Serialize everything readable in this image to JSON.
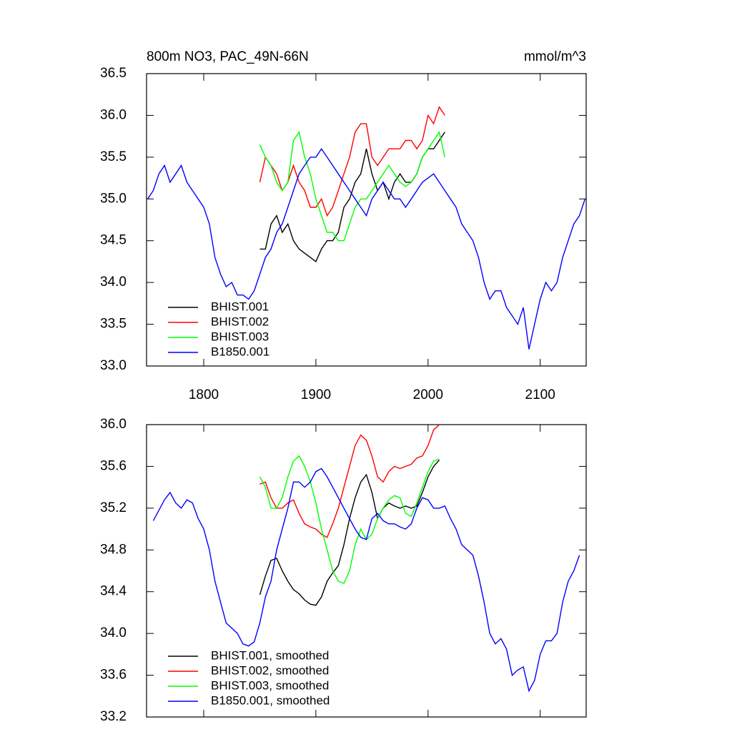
{
  "chart_data": [
    {
      "type": "line",
      "title": "800m NO3, PAC_49N-66N",
      "units": "mmol/m^3",
      "xlim": [
        1749,
        2141
      ],
      "xticks": [
        1800,
        1900,
        2000,
        2100
      ],
      "xticklabels": true,
      "ylim": [
        33.0,
        36.5
      ],
      "yticks": [
        {
          "value": 33.0,
          "label": "33.0"
        },
        33.5,
        {
          "value": 34.0,
          "label": "34.0"
        },
        34.5,
        {
          "value": 35.0,
          "label": "35.0"
        },
        35.5,
        {
          "value": 36.0,
          "label": "36.0"
        },
        36.5
      ],
      "legend": "lower left",
      "series": [
        {
          "name": "BHIST.001",
          "color": "#000000",
          "x": [
            1850,
            1855,
            1860,
            1865,
            1870,
            1875,
            1880,
            1885,
            1890,
            1895,
            1900,
            1905,
            1910,
            1915,
            1920,
            1925,
            1930,
            1935,
            1940,
            1945,
            1950,
            1955,
            1960,
            1965,
            1970,
            1975,
            1980,
            1985,
            1990,
            1995,
            2000,
            2005,
            2010,
            2015
          ],
          "values": [
            34.4,
            34.4,
            34.7,
            34.8,
            34.6,
            34.7,
            34.5,
            34.4,
            34.35,
            34.3,
            34.25,
            34.4,
            34.5,
            34.5,
            34.6,
            34.9,
            35.0,
            35.2,
            35.3,
            35.6,
            35.3,
            35.1,
            35.2,
            35.0,
            35.2,
            35.3,
            35.2,
            35.2,
            35.3,
            35.5,
            35.6,
            35.6,
            35.7,
            35.8
          ]
        },
        {
          "name": "BHIST.002",
          "color": "#ff0000",
          "x": [
            1850,
            1855,
            1860,
            1865,
            1870,
            1875,
            1880,
            1885,
            1890,
            1895,
            1900,
            1905,
            1910,
            1915,
            1920,
            1925,
            1930,
            1935,
            1940,
            1945,
            1950,
            1955,
            1960,
            1965,
            1970,
            1975,
            1980,
            1985,
            1990,
            1995,
            2000,
            2005,
            2010,
            2015
          ],
          "values": [
            35.2,
            35.5,
            35.4,
            35.3,
            35.1,
            35.2,
            35.4,
            35.2,
            35.1,
            34.9,
            34.9,
            35.0,
            34.8,
            34.9,
            35.1,
            35.3,
            35.5,
            35.8,
            35.9,
            35.9,
            35.5,
            35.4,
            35.5,
            35.6,
            35.6,
            35.6,
            35.7,
            35.7,
            35.6,
            35.7,
            36.0,
            35.9,
            36.1,
            36.0
          ]
        },
        {
          "name": "BHIST.003",
          "color": "#00ff00",
          "x": [
            1850,
            1855,
            1860,
            1865,
            1870,
            1875,
            1880,
            1885,
            1890,
            1895,
            1900,
            1905,
            1910,
            1915,
            1920,
            1925,
            1930,
            1935,
            1940,
            1945,
            1950,
            1955,
            1960,
            1965,
            1970,
            1975,
            1980,
            1985,
            1990,
            1995,
            2000,
            2005,
            2010,
            2015
          ],
          "values": [
            35.65,
            35.5,
            35.4,
            35.2,
            35.1,
            35.2,
            35.7,
            35.8,
            35.5,
            35.3,
            35.0,
            34.8,
            34.6,
            34.6,
            34.5,
            34.5,
            34.7,
            34.9,
            35.0,
            35.0,
            35.1,
            35.2,
            35.3,
            35.4,
            35.3,
            35.2,
            35.15,
            35.2,
            35.3,
            35.5,
            35.6,
            35.7,
            35.8,
            35.5
          ]
        },
        {
          "name": "B1850.001",
          "color": "#0000ff",
          "x": [
            1750,
            1755,
            1760,
            1765,
            1770,
            1775,
            1780,
            1785,
            1790,
            1795,
            1800,
            1805,
            1810,
            1815,
            1820,
            1825,
            1830,
            1835,
            1840,
            1845,
            1850,
            1855,
            1860,
            1865,
            1870,
            1875,
            1880,
            1885,
            1890,
            1895,
            1900,
            1905,
            1910,
            1915,
            1920,
            1925,
            1930,
            1935,
            1940,
            1945,
            1950,
            1955,
            1960,
            1965,
            1970,
            1975,
            1980,
            1985,
            1990,
            1995,
            2000,
            2005,
            2010,
            2015,
            2020,
            2025,
            2030,
            2035,
            2040,
            2045,
            2050,
            2055,
            2060,
            2065,
            2070,
            2075,
            2080,
            2085,
            2090,
            2095,
            2100,
            2105,
            2110,
            2115,
            2120,
            2125,
            2130,
            2135,
            2140
          ],
          "values": [
            35.0,
            35.1,
            35.3,
            35.4,
            35.2,
            35.3,
            35.4,
            35.2,
            35.1,
            35.0,
            34.9,
            34.7,
            34.3,
            34.1,
            33.95,
            34.0,
            33.85,
            33.85,
            33.8,
            33.9,
            34.1,
            34.3,
            34.4,
            34.6,
            34.7,
            34.9,
            35.1,
            35.3,
            35.4,
            35.5,
            35.5,
            35.6,
            35.5,
            35.4,
            35.3,
            35.2,
            35.1,
            35.0,
            34.9,
            34.8,
            35.0,
            35.1,
            35.2,
            35.1,
            35.0,
            35.0,
            34.9,
            35.0,
            35.1,
            35.2,
            35.25,
            35.3,
            35.2,
            35.1,
            35.0,
            34.9,
            34.7,
            34.6,
            34.5,
            34.3,
            34.0,
            33.8,
            33.9,
            33.9,
            33.7,
            33.6,
            33.5,
            33.7,
            33.2,
            33.5,
            33.8,
            34.0,
            33.9,
            34.0,
            34.3,
            34.5,
            34.7,
            34.8,
            35.0
          ]
        }
      ]
    },
    {
      "type": "line",
      "xlim": [
        1749,
        2141
      ],
      "xticks": [
        1800,
        1900,
        2000,
        2100
      ],
      "xticklabels": false,
      "ylim": [
        33.2,
        36.0
      ],
      "yticks": [
        33.2,
        33.6,
        {
          "value": 34.0,
          "label": "34.0"
        },
        34.4,
        34.8,
        35.2,
        35.6,
        {
          "value": 36.0,
          "label": "36.0"
        }
      ],
      "legend": "lower left",
      "series": [
        {
          "name": "BHIST.001, smoothed",
          "color": "#000000",
          "x": [
            1850,
            1855,
            1860,
            1865,
            1870,
            1875,
            1880,
            1885,
            1890,
            1895,
            1900,
            1905,
            1910,
            1915,
            1920,
            1925,
            1930,
            1935,
            1940,
            1945,
            1950,
            1955,
            1960,
            1965,
            1970,
            1975,
            1980,
            1985,
            1990,
            1995,
            2000,
            2005,
            2010
          ],
          "values": [
            34.37,
            34.55,
            34.7,
            34.72,
            34.6,
            34.5,
            34.42,
            34.38,
            34.32,
            34.28,
            34.27,
            34.35,
            34.5,
            34.58,
            34.65,
            34.85,
            35.1,
            35.3,
            35.45,
            35.52,
            35.35,
            35.1,
            35.2,
            35.25,
            35.22,
            35.2,
            35.22,
            35.2,
            35.22,
            35.35,
            35.5,
            35.6,
            35.66
          ]
        },
        {
          "name": "BHIST.002, smoothed",
          "color": "#ff0000",
          "x": [
            1850,
            1855,
            1860,
            1865,
            1870,
            1875,
            1880,
            1885,
            1890,
            1895,
            1900,
            1905,
            1910,
            1915,
            1920,
            1925,
            1930,
            1935,
            1940,
            1945,
            1950,
            1955,
            1960,
            1965,
            1970,
            1975,
            1980,
            1985,
            1990,
            1995,
            2000,
            2005,
            2010
          ],
          "values": [
            35.43,
            35.45,
            35.3,
            35.2,
            35.2,
            35.25,
            35.28,
            35.15,
            35.05,
            35.02,
            35.0,
            34.95,
            34.92,
            35.05,
            35.2,
            35.4,
            35.6,
            35.8,
            35.9,
            35.85,
            35.7,
            35.5,
            35.45,
            35.55,
            35.6,
            35.58,
            35.6,
            35.62,
            35.68,
            35.7,
            35.8,
            35.95,
            36.0
          ]
        },
        {
          "name": "BHIST.003, smoothed",
          "color": "#00ff00",
          "x": [
            1850,
            1855,
            1860,
            1865,
            1870,
            1875,
            1880,
            1885,
            1890,
            1895,
            1900,
            1905,
            1910,
            1915,
            1920,
            1925,
            1930,
            1935,
            1940,
            1945,
            1950,
            1955,
            1960,
            1965,
            1970,
            1975,
            1980,
            1985,
            1990,
            1995,
            2000,
            2005,
            2010
          ],
          "values": [
            35.5,
            35.4,
            35.2,
            35.2,
            35.3,
            35.5,
            35.65,
            35.7,
            35.6,
            35.45,
            35.25,
            35.0,
            34.8,
            34.6,
            34.5,
            34.48,
            34.6,
            34.85,
            35.0,
            34.9,
            34.95,
            35.1,
            35.2,
            35.28,
            35.32,
            35.3,
            35.15,
            35.12,
            35.25,
            35.4,
            35.55,
            35.65,
            35.67
          ]
        },
        {
          "name": "B1850.001, smoothed",
          "color": "#0000ff",
          "x": [
            1755,
            1765,
            1770,
            1775,
            1780,
            1785,
            1790,
            1795,
            1800,
            1805,
            1810,
            1815,
            1820,
            1825,
            1830,
            1835,
            1840,
            1845,
            1850,
            1855,
            1860,
            1865,
            1870,
            1875,
            1880,
            1885,
            1890,
            1895,
            1900,
            1905,
            1910,
            1915,
            1920,
            1925,
            1930,
            1935,
            1940,
            1945,
            1950,
            1955,
            1960,
            1965,
            1970,
            1975,
            1980,
            1985,
            1990,
            1995,
            2000,
            2005,
            2010,
            2015,
            2020,
            2025,
            2030,
            2035,
            2040,
            2045,
            2050,
            2055,
            2060,
            2065,
            2070,
            2075,
            2080,
            2085,
            2090,
            2095,
            2100,
            2105,
            2110,
            2115,
            2120,
            2125,
            2130,
            2135
          ],
          "values": [
            35.08,
            35.28,
            35.35,
            35.25,
            35.2,
            35.28,
            35.25,
            35.1,
            35.0,
            34.8,
            34.5,
            34.3,
            34.1,
            34.05,
            34.0,
            33.9,
            33.88,
            33.92,
            34.1,
            34.35,
            34.5,
            34.8,
            35.0,
            35.2,
            35.45,
            35.45,
            35.4,
            35.45,
            35.55,
            35.58,
            35.5,
            35.4,
            35.3,
            35.2,
            35.1,
            35.0,
            34.92,
            34.9,
            35.1,
            35.15,
            35.08,
            35.05,
            35.05,
            35.02,
            35.0,
            35.05,
            35.2,
            35.3,
            35.28,
            35.2,
            35.2,
            35.22,
            35.1,
            35.0,
            34.85,
            34.8,
            34.75,
            34.55,
            34.3,
            34.0,
            33.9,
            33.95,
            33.85,
            33.6,
            33.65,
            33.68,
            33.45,
            33.55,
            33.8,
            33.93,
            33.93,
            34.0,
            34.3,
            34.5,
            34.6,
            34.75
          ]
        }
      ]
    }
  ]
}
